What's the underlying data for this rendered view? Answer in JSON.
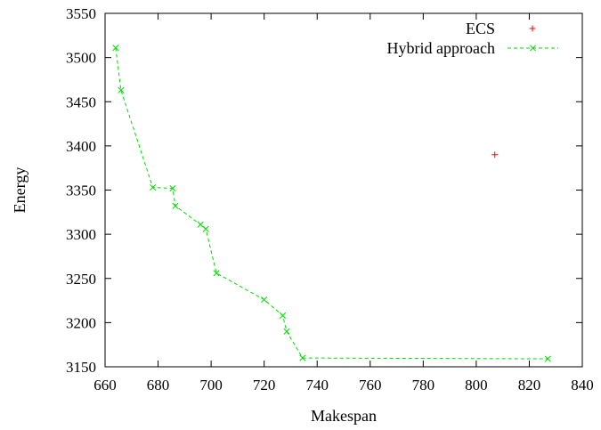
{
  "chart_data": {
    "type": "scatter",
    "xlabel": "Makespan",
    "ylabel": "Energy",
    "xlim": [
      660,
      840
    ],
    "ylim": [
      3150,
      3550
    ],
    "xticks": [
      660,
      680,
      700,
      720,
      740,
      760,
      780,
      800,
      820,
      840
    ],
    "yticks": [
      3150,
      3200,
      3250,
      3300,
      3350,
      3400,
      3450,
      3500,
      3550
    ],
    "grid": false,
    "legend_position": "top-right",
    "series": [
      {
        "name": "ECS",
        "style": "points",
        "marker": "plus",
        "color": "#ff0000",
        "points": [
          [
            807,
            3390
          ]
        ]
      },
      {
        "name": "Hybrid approach",
        "style": "linespoints",
        "marker": "x",
        "color": "#00dd00",
        "points": [
          [
            664,
            3511
          ],
          [
            666,
            3463
          ],
          [
            678,
            3353
          ],
          [
            685.5,
            3352
          ],
          [
            686.5,
            3332
          ],
          [
            696,
            3311
          ],
          [
            698,
            3306
          ],
          [
            702,
            3256
          ],
          [
            720,
            3226
          ],
          [
            727,
            3208
          ],
          [
            728.5,
            3190
          ],
          [
            734.5,
            3160
          ],
          [
            827,
            3159
          ]
        ]
      }
    ]
  }
}
